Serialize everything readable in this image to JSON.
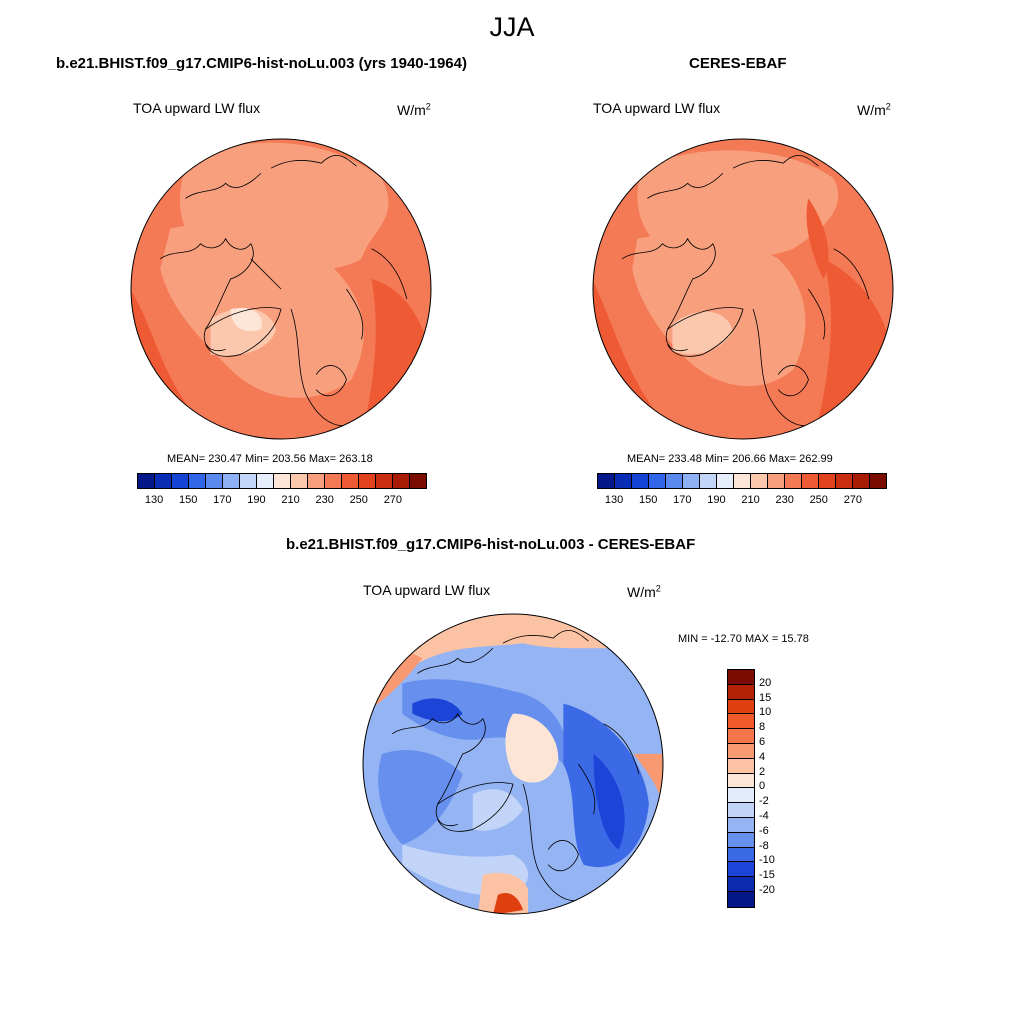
{
  "title": "JJA",
  "panels": [
    {
      "title": "b.e21.BHIST.f09_g17.CMIP6-hist-noLu.003 (yrs 1940-1964)",
      "variable": "TOA upward LW flux",
      "units": "W/m",
      "units_sup": "2",
      "stats": "MEAN= 230.47  Min= 203.56  Max= 263.18",
      "stat_values": {
        "mean": 230.47,
        "min": 203.56,
        "max": 263.18
      }
    },
    {
      "title": "CERES-EBAF",
      "variable": "TOA upward LW flux",
      "units": "W/m",
      "units_sup": "2",
      "stats": "MEAN= 233.48  Min= 206.66  Max= 262.99",
      "stat_values": {
        "mean": 233.48,
        "min": 206.66,
        "max": 262.99
      }
    },
    {
      "title": "b.e21.BHIST.f09_g17.CMIP6-hist-noLu.003 - CERES-EBAF",
      "variable": "TOA upward LW flux",
      "units": "W/m",
      "units_sup": "2",
      "stats": "MIN = -12.70 MAX =  15.78",
      "stat_values": {
        "min": -12.7,
        "max": 15.78
      }
    }
  ],
  "colorbar_abs": {
    "labels": [
      "130",
      "150",
      "170",
      "190",
      "210",
      "230",
      "250",
      "270"
    ],
    "colors": [
      "#05188a",
      "#0a2db5",
      "#1545d6",
      "#3266e8",
      "#5a8af0",
      "#8eb0f5",
      "#c2d6fa",
      "#e6eefc",
      "#fde6d8",
      "#fbc7ad",
      "#f8a07e",
      "#f47a55",
      "#ee5a34",
      "#e2421d",
      "#c92e10",
      "#a81c06",
      "#7a0c00"
    ]
  },
  "colorbar_diff": {
    "labels": [
      "20",
      "15",
      "10",
      "8",
      "6",
      "4",
      "2",
      "0",
      "-2",
      "-4",
      "-6",
      "-8",
      "-10",
      "-15",
      "-20"
    ],
    "colors": [
      "#7a0c00",
      "#b32205",
      "#e0400f",
      "#f0592a",
      "#f4764a",
      "#f79a73",
      "#fbc2a3",
      "#fde5d6",
      "#e4ecfb",
      "#c2d5f8",
      "#94b4f3",
      "#6790ee",
      "#3c6ae6",
      "#1c45d8",
      "#0b2bb0",
      "#05188a"
    ]
  }
}
